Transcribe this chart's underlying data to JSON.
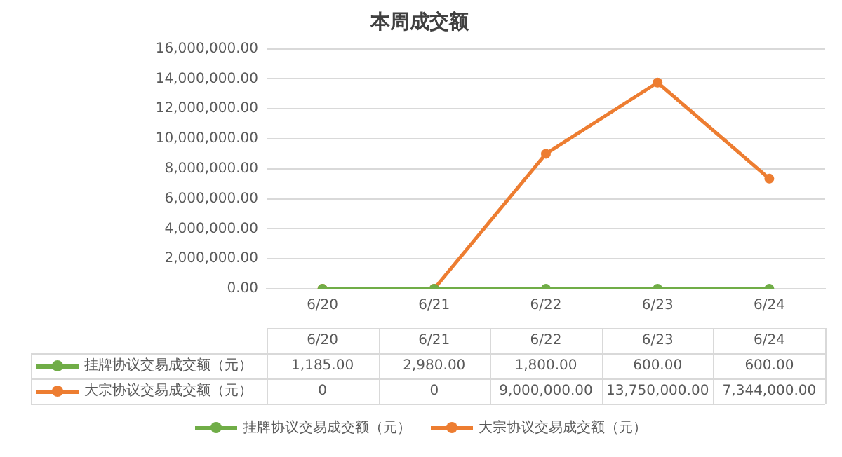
{
  "chart_data": {
    "type": "line",
    "title": "本周成交额",
    "categories": [
      "6/20",
      "6/21",
      "6/22",
      "6/23",
      "6/24"
    ],
    "series": [
      {
        "name": "挂牌协议交易成交额（元）",
        "color": "#70ad47",
        "values": [
          1185,
          2980,
          1800,
          600,
          600
        ],
        "value_labels": [
          "1,185.00",
          "2,980.00",
          "1,800.00",
          "600.00",
          "600.00"
        ]
      },
      {
        "name": "大宗协议交易成交额（元）",
        "color": "#ed7d31",
        "values": [
          0,
          0,
          9000000,
          13750000,
          7344000
        ],
        "value_labels": [
          "0",
          "0",
          "9,000,000.00",
          "13,750,000.00",
          "7,344,000.00"
        ]
      }
    ],
    "ylim": [
      0,
      16000000
    ],
    "yticks": [
      {
        "value": 0,
        "label": "0.00"
      },
      {
        "value": 2000000,
        "label": "2,000,000.00"
      },
      {
        "value": 4000000,
        "label": "4,000,000.00"
      },
      {
        "value": 6000000,
        "label": "6,000,000.00"
      },
      {
        "value": 8000000,
        "label": "8,000,000.00"
      },
      {
        "value": 10000000,
        "label": "10,000,000.00"
      },
      {
        "value": 12000000,
        "label": "12,000,000.00"
      },
      {
        "value": 14000000,
        "label": "14,000,000.00"
      },
      {
        "value": 16000000,
        "label": "16,000,000.00"
      }
    ],
    "grid": "y",
    "marker": "circle",
    "line_style": "solid",
    "legend": "bottom"
  }
}
